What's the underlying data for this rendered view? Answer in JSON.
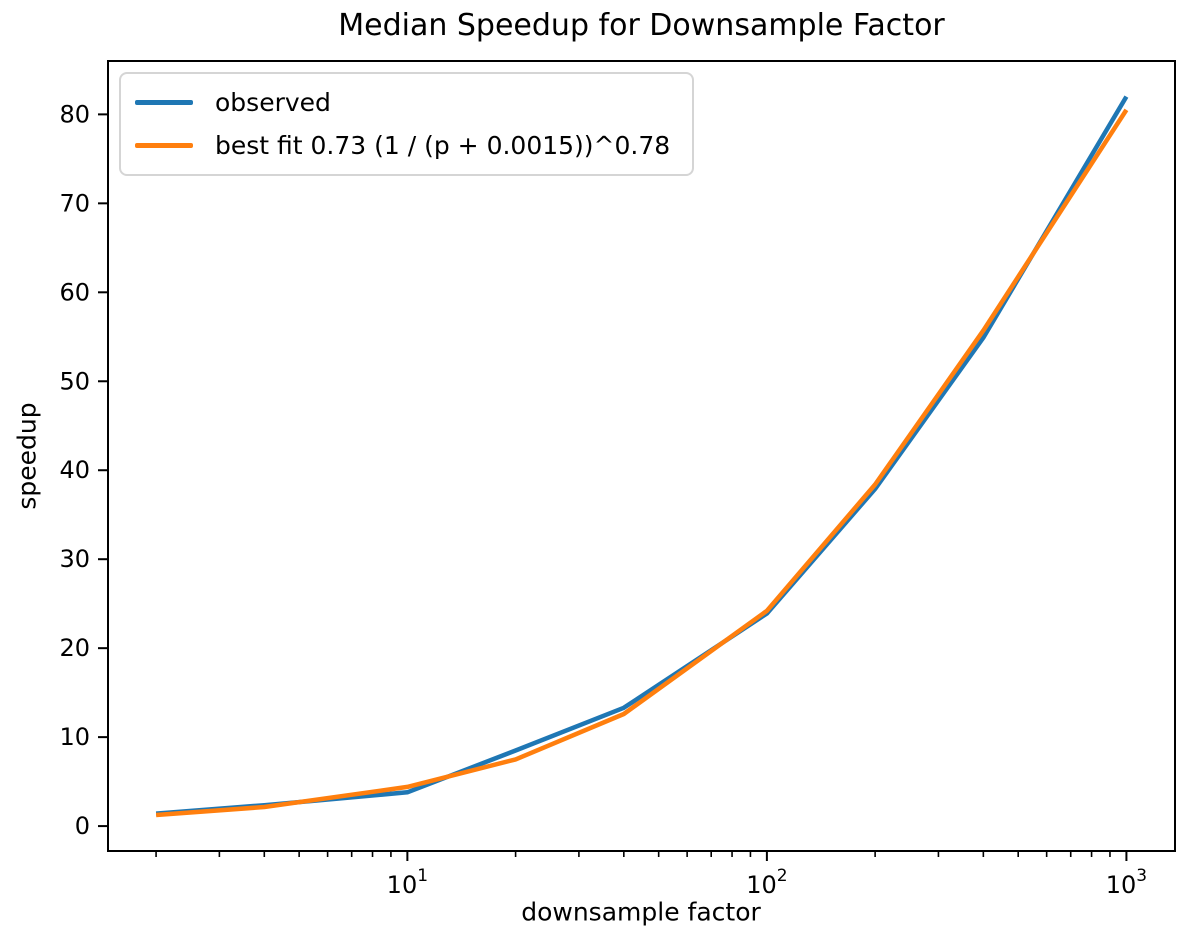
{
  "chart_data": {
    "type": "line",
    "title": "Median Speedup for Downsample Factor",
    "xlabel": "downsample factor",
    "ylabel": "speedup",
    "x_scale": "log",
    "y_scale": "linear",
    "grid": false,
    "x": [
      2,
      4,
      10,
      20,
      40,
      100,
      200,
      400,
      1000
    ],
    "series": [
      {
        "name": "observed",
        "color": "#1f77b4",
        "values": [
          1.4,
          2.35,
          3.8,
          8.5,
          13.3,
          23.9,
          37.9,
          54.9,
          82.0
        ]
      },
      {
        "name": "best fit 0.73 (1 / (p + 0.0015))^0.78",
        "color": "#ff7f0e",
        "values": [
          1.25,
          2.15,
          4.4,
          7.5,
          12.6,
          24.2,
          38.4,
          55.7,
          80.5
        ]
      }
    ],
    "xlim": [
      1.47,
      1365
    ],
    "ylim": [
      -2.8,
      86
    ],
    "y_ticks": [
      0,
      10,
      20,
      30,
      40,
      50,
      60,
      70,
      80
    ],
    "x_ticks": [
      {
        "value": 10,
        "label": "10^1",
        "base": "10",
        "exponent": "1"
      },
      {
        "value": 100,
        "label": "10^2",
        "base": "10",
        "exponent": "2"
      },
      {
        "value": 1000,
        "label": "10^3",
        "base": "10",
        "exponent": "3"
      }
    ],
    "legend": {
      "position": "upper left",
      "items": [
        {
          "label": "observed",
          "color": "#1f77b4"
        },
        {
          "label": "best fit 0.73 (1 / (p + 0.0015))^0.78",
          "color": "#ff7f0e"
        }
      ]
    },
    "axis_color": "#000000",
    "tick_label_color": "#000000"
  }
}
